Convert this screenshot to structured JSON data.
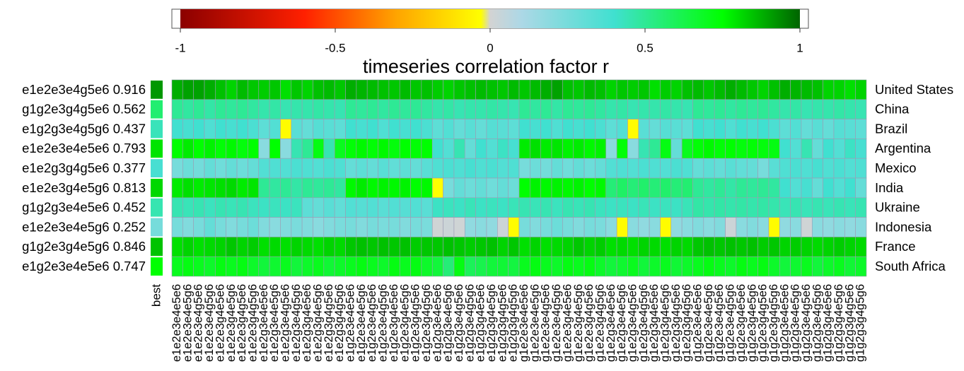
{
  "chart_data": {
    "type": "heatmap",
    "title": "timeseries correlation factor r",
    "best_header": "best",
    "xlim": [
      -1,
      1
    ],
    "xticks": [
      -1,
      -0.5,
      0,
      0.5,
      1
    ],
    "colorscale": [
      [
        -1,
        "#8b0000"
      ],
      [
        -0.6,
        "#ff2000"
      ],
      [
        -0.3,
        "#ffa500"
      ],
      [
        -0.03,
        "#ffff00"
      ],
      [
        0,
        "#d3d3d3"
      ],
      [
        0.1,
        "#add8e6"
      ],
      [
        0.4,
        "#40e0d0"
      ],
      [
        0.75,
        "#00ff00"
      ],
      [
        1,
        "#006400"
      ]
    ],
    "rows": [
      "United States",
      "China",
      "Brazil",
      "Argentina",
      "Mexico",
      "India",
      "Ukraine",
      "Indonesia",
      "France",
      "South Africa"
    ],
    "best_labels": [
      "e1e2e3e4g5e6 0.916",
      "g1g2e3g4g5e6 0.562",
      "e1g2g3e4g5g6 0.437",
      "e1e2e3e4e5e6 0.793",
      "e1e2g3g4g5e6 0.377",
      "e1e2e3g4e5g6 0.813",
      "g1g2g3e4e5e6 0.452",
      "e1e2e3e4e5g6 0.252",
      "g1g2e3g4e5g6 0.846",
      "e1g2e3e4e5e6 0.747"
    ],
    "best_values": [
      0.916,
      0.562,
      0.437,
      0.793,
      0.377,
      0.813,
      0.452,
      0.252,
      0.846,
      0.747
    ],
    "columns": [
      "e1e2e3e4e5e6",
      "e1e2e3e4e5g6",
      "e1e2e3e4g5e6",
      "e1e2e3e4g5g6",
      "e1e2e3g4e5e6",
      "e1e2e3g4e5g6",
      "e1e2e3g4g5e6",
      "e1e2e3g4g5g6",
      "e1e2g3e4e5e6",
      "e1e2g3e4e5g6",
      "e1e2g3e4g5e6",
      "e1e2g3e4g5g6",
      "e1e2g3g4e5e6",
      "e1e2g3g4e5g6",
      "e1e2g3g4g5e6",
      "e1e2g3g4g5g6",
      "e1g2e3e4e5e6",
      "e1g2e3e4e5g6",
      "e1g2e3e4g5e6",
      "e1g2e3e4g5g6",
      "e1g2e3g4e5e6",
      "e1g2e3g4e5g6",
      "e1g2e3g4g5e6",
      "e1g2e3g4g5g6",
      "e1g2g3e4e5e6",
      "e1g2g3e4e5g6",
      "e1g2g3e4g5e6",
      "e1g2g3e4g5g6",
      "e1g2g3g4e5e6",
      "e1g2g3g4e5g6",
      "e1g2g3g4g5e6",
      "e1g2g3g4g5g6",
      "g1e2e3e4e5e6",
      "g1e2e3e4e5g6",
      "g1e2e3e4g5e6",
      "g1e2e3e4g5g6",
      "g1e2e3g4e5e6",
      "g1e2e3g4e5g6",
      "g1e2e3g4g5e6",
      "g1e2e3g4g5g6",
      "g1e2g3e4e5e6",
      "g1e2g3e4e5g6",
      "g1e2g3e4g5e6",
      "g1e2g3e4g5g6",
      "g1e2g3g4e5e6",
      "g1e2g3g4e5g6",
      "g1e2g3g4g5e6",
      "g1e2g3g4g5g6",
      "g1g2e3e4e5e6",
      "g1g2e3e4e5g6",
      "g1g2e3e4g5e6",
      "g1g2e3e4g5g6",
      "g1g2e3g4e5e6",
      "g1g2e3g4e5g6",
      "g1g2e3g4g5e6",
      "g1g2e3g4g5g6",
      "g1g2g3e4e5e6",
      "g1g2g3e4e5g6",
      "g1g2g3e4g5e6",
      "g1g2g3e4g5g6",
      "g1g2g3g4e5e6",
      "g1g2g3g4e5g6",
      "g1g2g3g4g5e6",
      "g1g2g3g4g5g6"
    ],
    "values": [
      [
        0.88,
        0.9,
        0.9,
        0.88,
        0.85,
        0.82,
        0.86,
        0.84,
        0.83,
        0.84,
        0.8,
        0.84,
        0.82,
        0.85,
        0.86,
        0.84,
        0.88,
        0.87,
        0.86,
        0.85,
        0.84,
        0.86,
        0.84,
        0.85,
        0.83,
        0.82,
        0.84,
        0.85,
        0.86,
        0.85,
        0.84,
        0.86,
        0.84,
        0.86,
        0.88,
        0.9,
        0.85,
        0.84,
        0.86,
        0.85,
        0.82,
        0.84,
        0.83,
        0.84,
        0.8,
        0.83,
        0.82,
        0.85,
        0.86,
        0.84,
        0.86,
        0.88,
        0.86,
        0.84,
        0.82,
        0.85,
        0.88,
        0.87,
        0.86,
        0.85,
        0.82,
        0.82,
        0.8,
        0.82
      ],
      [
        0.5,
        0.48,
        0.5,
        0.47,
        0.5,
        0.49,
        0.5,
        0.48,
        0.46,
        0.47,
        0.45,
        0.46,
        0.46,
        0.47,
        0.46,
        0.45,
        0.5,
        0.49,
        0.5,
        0.48,
        0.5,
        0.49,
        0.5,
        0.48,
        0.46,
        0.47,
        0.45,
        0.46,
        0.46,
        0.47,
        0.46,
        0.45,
        0.5,
        0.48,
        0.5,
        0.47,
        0.5,
        0.49,
        0.5,
        0.48,
        0.46,
        0.47,
        0.45,
        0.46,
        0.46,
        0.47,
        0.46,
        0.45,
        0.5,
        0.49,
        0.5,
        0.48,
        0.5,
        0.49,
        0.5,
        0.48,
        0.46,
        0.47,
        0.45,
        0.46,
        0.46,
        0.47,
        0.46,
        0.45
      ],
      [
        0.4,
        0.38,
        0.4,
        0.36,
        0.4,
        0.38,
        0.4,
        0.37,
        0.32,
        0.35,
        -0.04,
        0.33,
        0.3,
        0.34,
        0.33,
        0.32,
        0.4,
        0.38,
        0.4,
        0.36,
        0.4,
        0.38,
        0.4,
        0.37,
        0.32,
        0.35,
        0.3,
        0.33,
        0.3,
        0.34,
        0.33,
        0.32,
        0.4,
        0.38,
        0.4,
        0.36,
        0.4,
        0.38,
        0.4,
        0.37,
        0.32,
        0.35,
        -0.04,
        0.33,
        0.3,
        0.34,
        0.33,
        0.32,
        0.4,
        0.38,
        0.4,
        0.36,
        0.4,
        0.38,
        0.4,
        0.37,
        0.32,
        0.35,
        0.3,
        0.33,
        0.3,
        0.34,
        0.33,
        0.32
      ],
      [
        0.75,
        0.78,
        0.75,
        0.77,
        0.74,
        0.76,
        0.73,
        0.75,
        0.2,
        0.75,
        0.2,
        0.45,
        0.5,
        0.72,
        0.45,
        0.7,
        0.74,
        0.76,
        0.74,
        0.76,
        0.73,
        0.75,
        0.74,
        0.75,
        0.4,
        0.35,
        0.45,
        0.3,
        0.4,
        0.35,
        0.42,
        0.38,
        0.78,
        0.8,
        0.78,
        0.79,
        0.77,
        0.78,
        0.76,
        0.77,
        0.2,
        0.74,
        0.2,
        0.45,
        0.5,
        0.72,
        0.3,
        0.7,
        0.74,
        0.76,
        0.74,
        0.75,
        0.73,
        0.74,
        0.73,
        0.72,
        0.4,
        0.35,
        0.45,
        0.3,
        0.4,
        0.35,
        0.42,
        0.38
      ],
      [
        0.25,
        0.28,
        0.26,
        0.3,
        0.27,
        0.3,
        0.28,
        0.3,
        0.35,
        0.36,
        0.35,
        0.37,
        0.36,
        0.35,
        0.37,
        0.36,
        0.3,
        0.32,
        0.3,
        0.33,
        0.31,
        0.32,
        0.3,
        0.33,
        0.36,
        0.37,
        0.36,
        0.38,
        0.36,
        0.37,
        0.35,
        0.36,
        0.25,
        0.28,
        0.26,
        0.3,
        0.27,
        0.3,
        0.28,
        0.3,
        0.35,
        0.36,
        0.35,
        0.37,
        0.36,
        0.35,
        0.37,
        0.36,
        0.3,
        0.32,
        0.3,
        0.33,
        0.31,
        0.3,
        0.25,
        0.33,
        0.36,
        0.37,
        0.36,
        0.38,
        0.36,
        0.37,
        0.35,
        0.36
      ],
      [
        0.78,
        0.8,
        0.78,
        0.79,
        0.8,
        0.81,
        0.78,
        0.79,
        0.5,
        0.48,
        0.5,
        0.47,
        0.5,
        0.49,
        0.5,
        0.48,
        0.76,
        0.78,
        0.76,
        0.77,
        0.76,
        0.77,
        0.75,
        0.76,
        -0.03,
        0.25,
        0.3,
        0.28,
        0.3,
        0.27,
        0.3,
        0.28,
        0.75,
        0.77,
        0.76,
        0.77,
        0.76,
        0.77,
        0.75,
        0.76,
        0.55,
        0.58,
        0.55,
        0.57,
        0.55,
        0.57,
        0.55,
        0.56,
        0.5,
        0.48,
        0.5,
        0.47,
        0.5,
        0.49,
        0.5,
        0.48,
        0.4,
        0.35,
        0.38,
        0.3,
        0.4,
        0.35,
        0.4,
        0.3
      ],
      [
        0.45,
        0.44,
        0.45,
        0.43,
        0.45,
        0.44,
        0.45,
        0.43,
        0.42,
        0.43,
        0.42,
        0.43,
        0.32,
        0.3,
        0.33,
        0.31,
        0.35,
        0.34,
        0.35,
        0.33,
        0.35,
        0.34,
        0.35,
        0.33,
        0.42,
        0.43,
        0.42,
        0.44,
        0.42,
        0.43,
        0.42,
        0.44,
        0.45,
        0.44,
        0.45,
        0.43,
        0.45,
        0.44,
        0.45,
        0.43,
        0.42,
        0.43,
        0.42,
        0.44,
        0.42,
        0.43,
        0.42,
        0.44,
        0.47,
        0.46,
        0.47,
        0.46,
        0.47,
        0.46,
        0.47,
        0.46,
        0.44,
        0.45,
        0.44,
        0.45,
        0.44,
        0.45,
        0.44,
        0.45
      ],
      [
        0.25,
        0.22,
        0.25,
        0.3,
        0.25,
        0.22,
        0.25,
        0.28,
        0.22,
        0.2,
        0.22,
        0.24,
        0.22,
        0.2,
        0.22,
        0.24,
        0.25,
        0.22,
        0.25,
        0.24,
        0.25,
        0.22,
        0.25,
        0.24,
        0.01,
        0.02,
        0.01,
        0.18,
        0.2,
        0.18,
        0.02,
        -0.04,
        0.25,
        0.22,
        0.25,
        0.28,
        0.25,
        0.22,
        0.25,
        0.24,
        0.2,
        -0.04,
        0.2,
        0.18,
        0.2,
        -0.04,
        0.18,
        0.2,
        0.22,
        0.2,
        0.22,
        0.02,
        0.2,
        0.22,
        0.2,
        -0.04,
        0.18,
        0.2,
        0.01,
        0.2,
        0.18,
        0.2,
        0.18,
        0.2
      ],
      [
        0.8,
        0.82,
        0.8,
        0.81,
        0.82,
        0.84,
        0.82,
        0.83,
        0.8,
        0.81,
        0.8,
        0.82,
        0.81,
        0.8,
        0.82,
        0.81,
        0.84,
        0.85,
        0.84,
        0.85,
        0.84,
        0.85,
        0.83,
        0.84,
        0.84,
        0.85,
        0.84,
        0.83,
        0.84,
        0.85,
        0.82,
        0.84,
        0.8,
        0.82,
        0.8,
        0.81,
        0.82,
        0.84,
        0.82,
        0.83,
        0.8,
        0.81,
        0.8,
        0.82,
        0.81,
        0.8,
        0.82,
        0.81,
        0.84,
        0.85,
        0.84,
        0.85,
        0.84,
        0.85,
        0.83,
        0.84,
        0.82,
        0.83,
        0.82,
        0.81,
        0.82,
        0.83,
        0.82,
        0.81
      ],
      [
        0.7,
        0.72,
        0.7,
        0.68,
        0.72,
        0.7,
        0.72,
        0.68,
        0.65,
        0.67,
        0.7,
        0.65,
        0.68,
        0.7,
        0.66,
        0.68,
        0.7,
        0.72,
        0.7,
        0.68,
        0.72,
        0.7,
        0.72,
        0.68,
        0.65,
        0.55,
        0.72,
        0.6,
        0.62,
        0.65,
        0.66,
        0.64,
        0.7,
        0.72,
        0.7,
        0.68,
        0.72,
        0.7,
        0.72,
        0.68,
        0.65,
        0.67,
        0.7,
        0.65,
        0.68,
        0.7,
        0.66,
        0.68,
        0.7,
        0.72,
        0.7,
        0.68,
        0.72,
        0.7,
        0.72,
        0.68,
        0.65,
        0.67,
        0.7,
        0.65,
        0.68,
        0.7,
        0.66,
        0.68
      ]
    ]
  }
}
